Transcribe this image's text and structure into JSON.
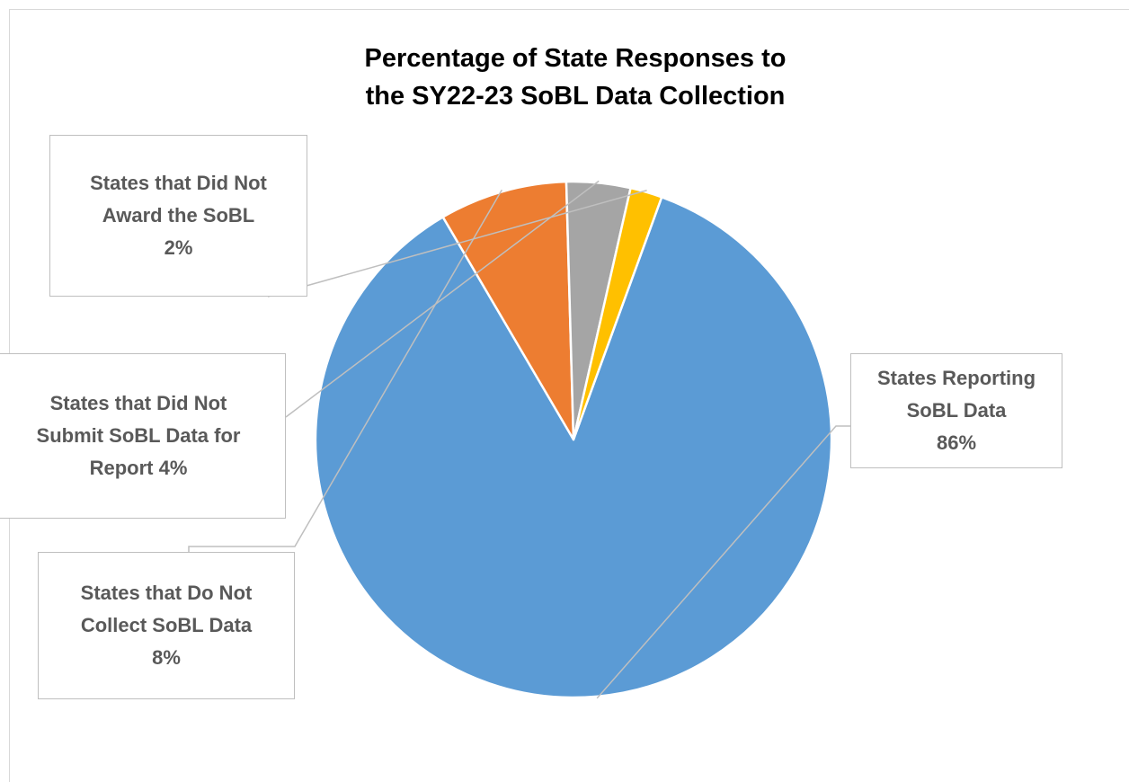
{
  "chart_data": {
    "type": "pie",
    "title": "Percentage of State Responses to the SY22-23 SoBL Data Collection",
    "title_lines": [
      "Percentage of State Responses to",
      "the SY22-23 SoBL Data Collection"
    ],
    "slices": [
      {
        "key": "reporting",
        "label_lines": [
          "States Reporting",
          "SoBL Data",
          "86%"
        ],
        "value": 86,
        "color": "#5b9bd5"
      },
      {
        "key": "do_not_collect",
        "label_lines": [
          "States that Do Not",
          "Collect SoBL Data",
          "8%"
        ],
        "value": 8,
        "color": "#ed7d31"
      },
      {
        "key": "did_not_submit",
        "label_lines": [
          "States that Did Not",
          "Submit SoBL Data for",
          "Report 4%"
        ],
        "value": 4,
        "color": "#a5a5a5"
      },
      {
        "key": "did_not_award",
        "label_lines": [
          "States that Did Not",
          "Award the SoBL",
          "2%"
        ],
        "value": 2,
        "color": "#ffc000"
      }
    ],
    "legend": "none",
    "data_labels": "callouts"
  },
  "colors": {
    "callout_border": "#bfbfbf",
    "leader_line": "#bfbfbf",
    "label_text": "#595959",
    "title_text": "#000000"
  }
}
